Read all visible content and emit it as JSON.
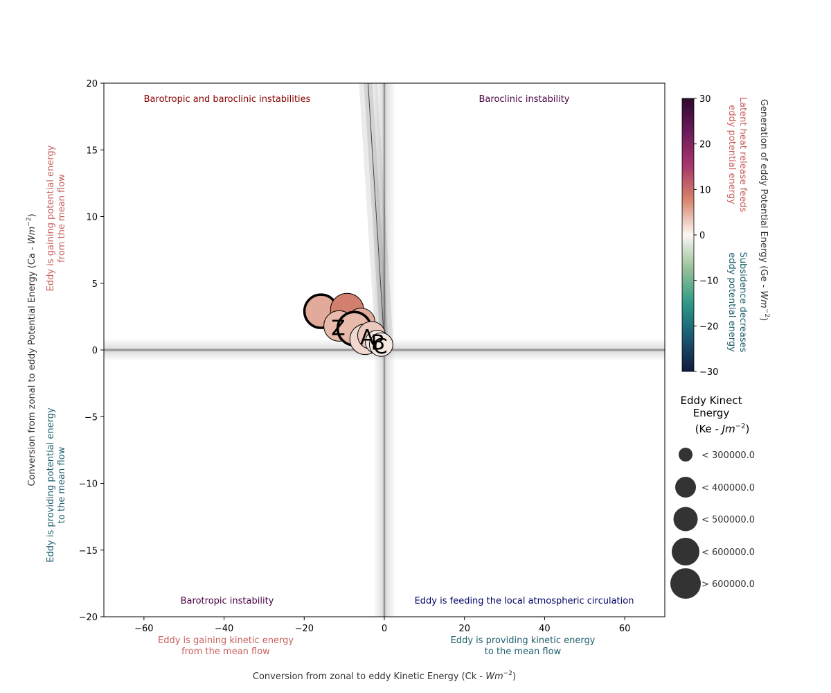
{
  "chart_data": {
    "type": "scatter",
    "xlabel_prefix": "Conversion from zonal to eddy Kinetic Energy (Ck - ",
    "xlabel_unit": "Wm",
    "xlabel_exp": "−2",
    "xlabel_suffix": ")",
    "ylabel_prefix": "Conversion from zonal to eddy Potential Energy (Ca - ",
    "ylabel_unit": "Wm",
    "ylabel_exp": "−2",
    "ylabel_suffix": ")",
    "xlim": [
      -70,
      70
    ],
    "ylim": [
      -20,
      20
    ],
    "xticks": [
      -60,
      -40,
      -20,
      0,
      20,
      40,
      60
    ],
    "yticks": [
      -20,
      -15,
      -10,
      -5,
      0,
      5,
      10,
      15,
      20
    ],
    "xtick_labels": [
      "−60",
      "−40",
      "−20",
      "0",
      "20",
      "40",
      "60"
    ],
    "ytick_labels": [
      "−20",
      "−15",
      "−10",
      "−5",
      "0",
      "5",
      "10",
      "15",
      "20"
    ],
    "quadrant_labels": {
      "top_left": "Barotropic and baroclinic instabilities",
      "top_right": "Baroclinic instability",
      "bottom_left": "Barotropic instability",
      "bottom_right": "Eddy is feeding the local atmospheric circulation"
    },
    "x_side_notes": {
      "negative": [
        "Eddy is gaining kinetic energy",
        "from the mean flow"
      ],
      "positive": [
        "Eddy is providing kinetic energy",
        "to the mean flow"
      ]
    },
    "y_side_notes": {
      "positive": [
        "Eddy is gaining potential energy",
        "from the mean flow"
      ],
      "negative": [
        "Eddy is providing potential energy",
        "to the mean flow"
      ]
    },
    "regression_line": {
      "slope": -4.8,
      "intercept": 0.5
    },
    "points": [
      {
        "ck": -15.8,
        "ca": 2.9,
        "ge": 5,
        "ke": 550000,
        "edge": "thick"
      },
      {
        "ck": -9.3,
        "ca": 3.0,
        "ge": 8,
        "ke": 500000,
        "edge": "thin"
      },
      {
        "ck": -11.3,
        "ca": 1.8,
        "ge": 4,
        "ke": 450000,
        "edge": "thin"
      },
      {
        "ck": -5.8,
        "ca": 2.1,
        "ge": 5,
        "ke": 380000,
        "edge": "thin"
      },
      {
        "ck": -7.5,
        "ca": 1.6,
        "ge": 4,
        "ke": 500000,
        "edge": "thick"
      },
      {
        "ck": -4.8,
        "ca": 0.8,
        "ge": 2,
        "ke": 400000,
        "edge": "thin"
      },
      {
        "ck": -3.2,
        "ca": 1.1,
        "ge": 3,
        "ke": 300000,
        "edge": "thin"
      },
      {
        "ck": -1.8,
        "ca": 0.6,
        "ge": 1,
        "ke": 280000,
        "edge": "thin"
      },
      {
        "ck": -0.8,
        "ca": 0.4,
        "ge": 1,
        "ke": 250000,
        "edge": "thin"
      }
    ],
    "point_labels": [
      {
        "ck": -11.5,
        "ca": 1.7,
        "text": "Z"
      },
      {
        "ck": -4.3,
        "ca": 1.0,
        "text": "A"
      },
      {
        "ck": -1.6,
        "ca": 0.6,
        "text": "B"
      },
      {
        "ck": -1.0,
        "ca": 0.3,
        "text": "C"
      }
    ],
    "colorbar": {
      "min": -30,
      "max": 30,
      "ticks": [
        30,
        20,
        10,
        0,
        -10,
        -20,
        -30
      ],
      "tick_labels": [
        "30",
        "20",
        "10",
        "0",
        "−10",
        "−20",
        "−30"
      ],
      "title_prefix": "Generation of eddy Potential Energy (Ge - ",
      "title_unit": "Wm",
      "title_exp": "−2",
      "title_suffix": ")",
      "positive_note": [
        "Latent heat release feeds",
        "eddy potential energy"
      ],
      "negative_note": [
        "Subsidence decreases",
        "eddy potential energy"
      ]
    },
    "size_legend": {
      "title_lines": [
        "Eddy Kinect",
        "Energy"
      ],
      "title_unit_prefix": "(Ke - ",
      "title_unit": "Jm",
      "title_unit_exp": "−2",
      "title_unit_suffix": ")",
      "entries": [
        {
          "label": "< 300000.0"
        },
        {
          "label": "< 400000.0"
        },
        {
          "label": "< 500000.0"
        },
        {
          "label": "< 600000.0"
        },
        {
          "label": "> 600000.0"
        }
      ]
    },
    "colors": {
      "gaining": "#c8605e",
      "providing": "#1e5f6e",
      "instab_both": "#8b0000",
      "instab_single": "#4b0044",
      "feeding": "#000066",
      "marker_dark": "#333333"
    }
  }
}
